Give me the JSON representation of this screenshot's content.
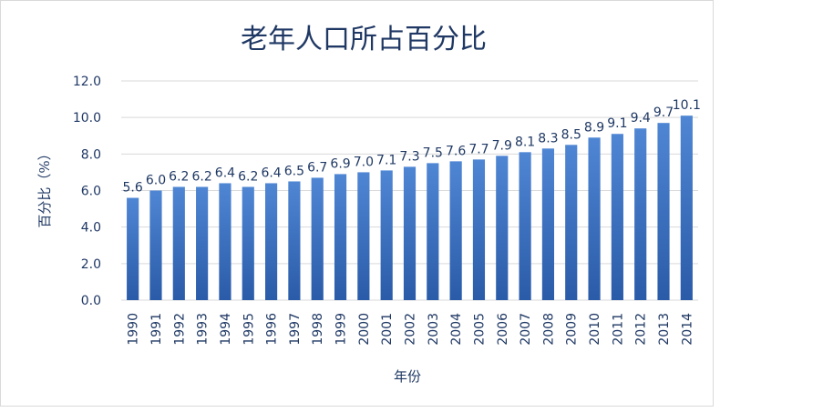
{
  "chart_data": {
    "type": "bar",
    "title": "老年人口所占百分比",
    "xlabel": "年份",
    "ylabel": "百分比（%）",
    "categories": [
      "1990",
      "1991",
      "1992",
      "1993",
      "1994",
      "1995",
      "1996",
      "1997",
      "1998",
      "1999",
      "2000",
      "2001",
      "2002",
      "2003",
      "2004",
      "2005",
      "2006",
      "2007",
      "2008",
      "2009",
      "2010",
      "2011",
      "2012",
      "2013",
      "2014"
    ],
    "values": [
      5.6,
      6.0,
      6.2,
      6.2,
      6.4,
      6.2,
      6.4,
      6.5,
      6.7,
      6.9,
      7.0,
      7.1,
      7.3,
      7.5,
      7.6,
      7.7,
      7.9,
      8.1,
      8.3,
      8.5,
      8.9,
      9.1,
      9.4,
      9.7,
      10.1
    ],
    "value_labels": [
      "5.6",
      "6.0",
      "6.2",
      "6.2",
      "6.4",
      "6.2",
      "6.4",
      "6.5",
      "6.7",
      "6.9",
      "7.0",
      "7.1",
      "7.3",
      "7.5",
      "7.6",
      "7.7",
      "7.9",
      "8.1",
      "8.3",
      "8.5",
      "8.9",
      "9.1",
      "9.4",
      "9.7",
      "10.1"
    ],
    "ylim": [
      0,
      12
    ],
    "yticks": [
      "0.0",
      "2.0",
      "4.0",
      "6.0",
      "8.0",
      "10.0",
      "12.0"
    ],
    "grid": true,
    "legend": "none",
    "bar_color": "#3a72c4"
  }
}
